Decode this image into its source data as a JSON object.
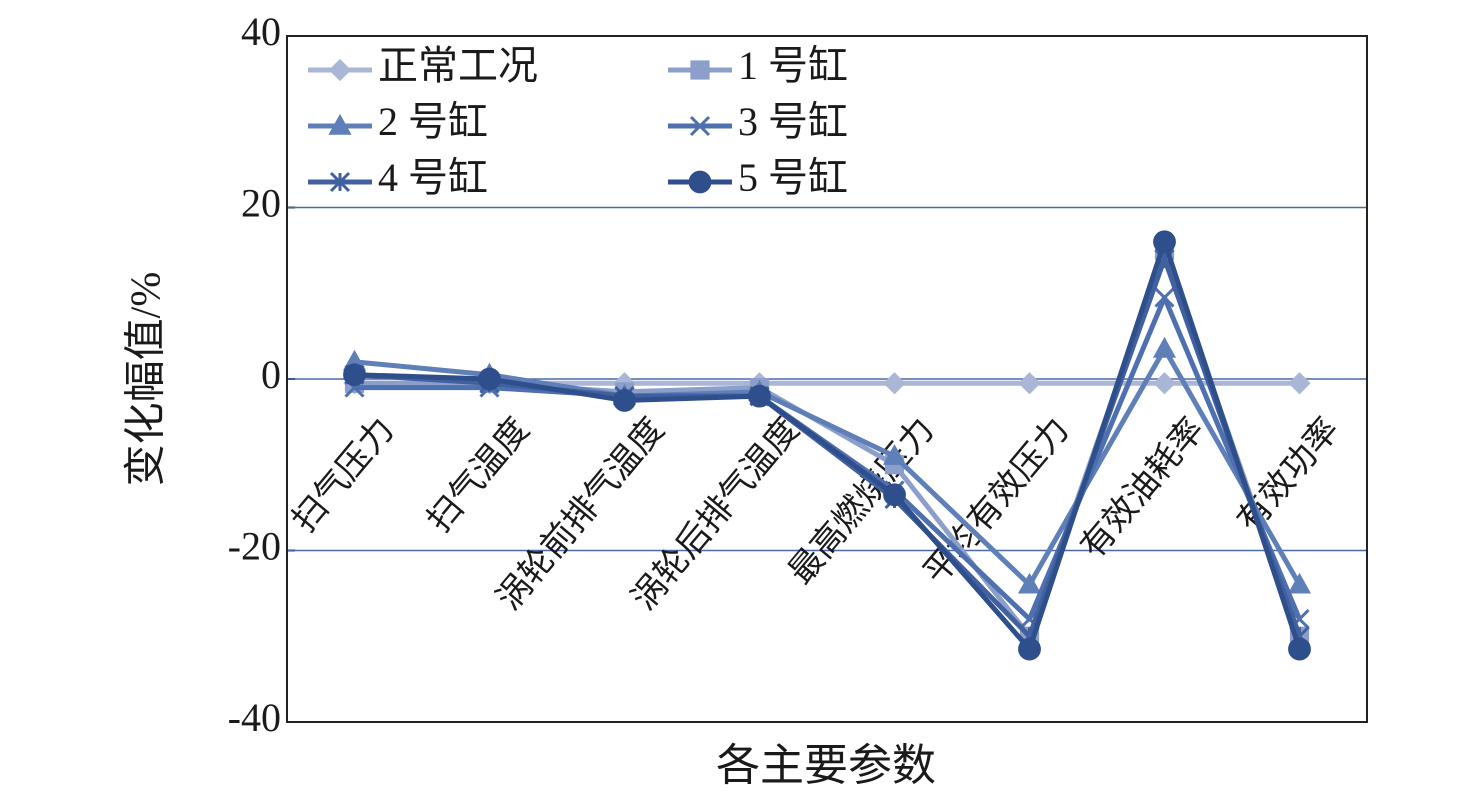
{
  "chart_data": {
    "type": "line",
    "y_label": "变化幅值/%",
    "x_label": "各主要参数",
    "categories": [
      "扫气压力",
      "扫气温度",
      "涡轮前排气温度",
      "涡轮后排气温度",
      "最高燃烧压力",
      "平均有效压力",
      "有效油耗率",
      "有效功率"
    ],
    "series": [
      {
        "name": "正常工况",
        "color": "#aab6d6",
        "marker": "diamond",
        "values": [
          -0.5,
          -0.5,
          -0.5,
          -0.5,
          -0.5,
          -0.5,
          -0.5,
          -0.5
        ]
      },
      {
        "name": "1 号缸",
        "color": "#8c9fcb",
        "marker": "square",
        "values": [
          -0.5,
          -0.5,
          -1.5,
          -1,
          -10,
          -30,
          15,
          -30
        ]
      },
      {
        "name": "2 号缸",
        "color": "#5f7fb9",
        "marker": "triangle",
        "values": [
          2,
          0.5,
          -2,
          -1.5,
          -9,
          -24,
          3.5,
          -24
        ]
      },
      {
        "name": "3 号缸",
        "color": "#4f70af",
        "marker": "x",
        "values": [
          -1,
          -1,
          -2,
          -2,
          -13,
          -28,
          9.5,
          -28
        ]
      },
      {
        "name": "4 号缸",
        "color": "#40609f",
        "marker": "star",
        "values": [
          0.5,
          -0.5,
          -2,
          -2,
          -14,
          -30,
          14,
          -30
        ]
      },
      {
        "name": "5 号缸",
        "color": "#2f4f8c",
        "marker": "circle",
        "values": [
          0.5,
          0,
          -2.5,
          -2,
          -13.5,
          -31.5,
          16,
          -31.5
        ]
      }
    ],
    "ylim": [
      -40,
      40
    ],
    "yticks": [
      -40,
      -20,
      0,
      20,
      40
    ],
    "grid": true
  }
}
